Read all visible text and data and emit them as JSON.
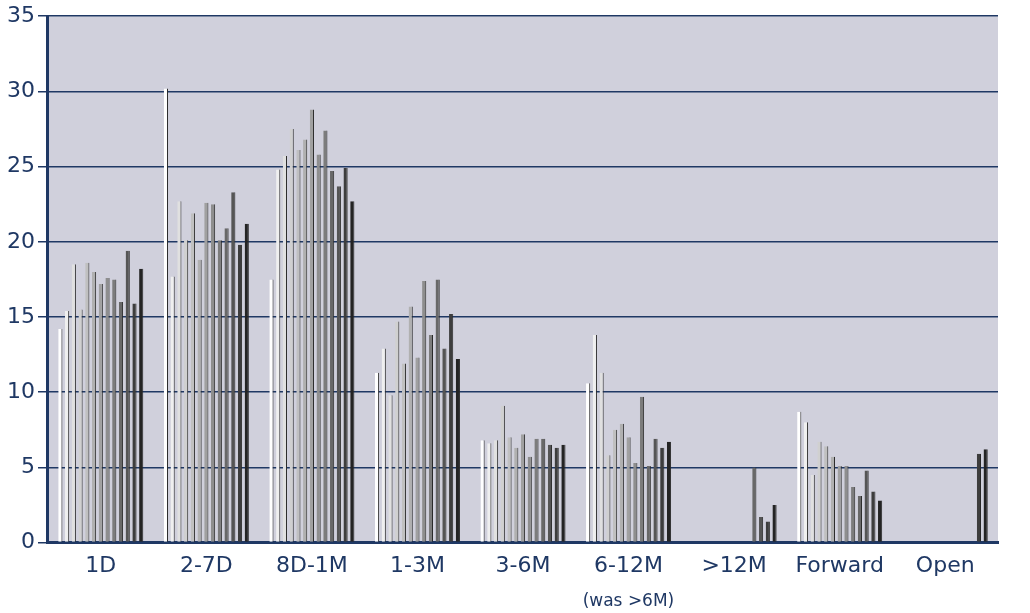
{
  "chart_data": {
    "type": "bar",
    "categories": [
      "1D",
      "2-7D",
      "8D-1M",
      "1-3M",
      "3-6M",
      "6-12M",
      ">12M",
      "Forward",
      "Open"
    ],
    "series": [
      {
        "color": "#ffffff",
        "values": [
          14.2,
          30.2,
          17.5,
          11.3,
          6.8,
          10.6,
          null,
          8.7,
          null
        ]
      },
      {
        "color": "#efefef",
        "values": [
          15.4,
          17.7,
          24.8,
          12.9,
          6.6,
          13.8,
          null,
          8.0,
          null
        ]
      },
      {
        "color": "#e0e0e0",
        "values": [
          18.5,
          22.7,
          25.7,
          9.8,
          6.8,
          11.3,
          null,
          4.5,
          null
        ]
      },
      {
        "color": "#d0d0d0",
        "values": [
          15.5,
          20.1,
          27.5,
          14.7,
          9.1,
          5.8,
          null,
          6.7,
          null
        ]
      },
      {
        "color": "#c0c0c0",
        "values": [
          18.6,
          21.9,
          26.1,
          11.9,
          7.0,
          7.5,
          null,
          6.4,
          null
        ]
      },
      {
        "color": "#b0b0b0",
        "values": [
          18.0,
          18.8,
          26.8,
          15.7,
          6.3,
          7.9,
          null,
          5.7,
          null
        ]
      },
      {
        "color": "#a0a0a0",
        "values": [
          17.2,
          22.6,
          28.8,
          12.3,
          7.2,
          7.0,
          null,
          5.1,
          null
        ]
      },
      {
        "color": "#8e8e8e",
        "values": [
          17.6,
          22.5,
          25.8,
          17.4,
          5.7,
          5.3,
          null,
          5.1,
          null
        ]
      },
      {
        "color": "#7c7c7c",
        "values": [
          17.5,
          20.1,
          27.4,
          13.8,
          6.9,
          9.7,
          null,
          3.7,
          null
        ]
      },
      {
        "color": "#686868",
        "values": [
          16.0,
          20.9,
          24.7,
          17.5,
          6.9,
          5.1,
          5.0,
          3.1,
          null
        ]
      },
      {
        "color": "#555555",
        "values": [
          19.4,
          23.3,
          23.7,
          12.9,
          6.5,
          6.9,
          1.7,
          4.8,
          null
        ]
      },
      {
        "color": "#3d3d3d",
        "values": [
          15.9,
          19.8,
          24.9,
          15.2,
          6.3,
          6.3,
          1.4,
          3.4,
          5.9
        ]
      },
      {
        "color": "#242424",
        "values": [
          18.2,
          21.2,
          22.7,
          12.2,
          6.5,
          6.7,
          2.5,
          2.8,
          6.2
        ]
      }
    ],
    "ylim": [
      0,
      35
    ],
    "yticks": [
      0,
      5,
      10,
      15,
      20,
      25,
      30,
      35
    ],
    "grid": "y",
    "annotations": [
      "(was >6M)"
    ]
  }
}
